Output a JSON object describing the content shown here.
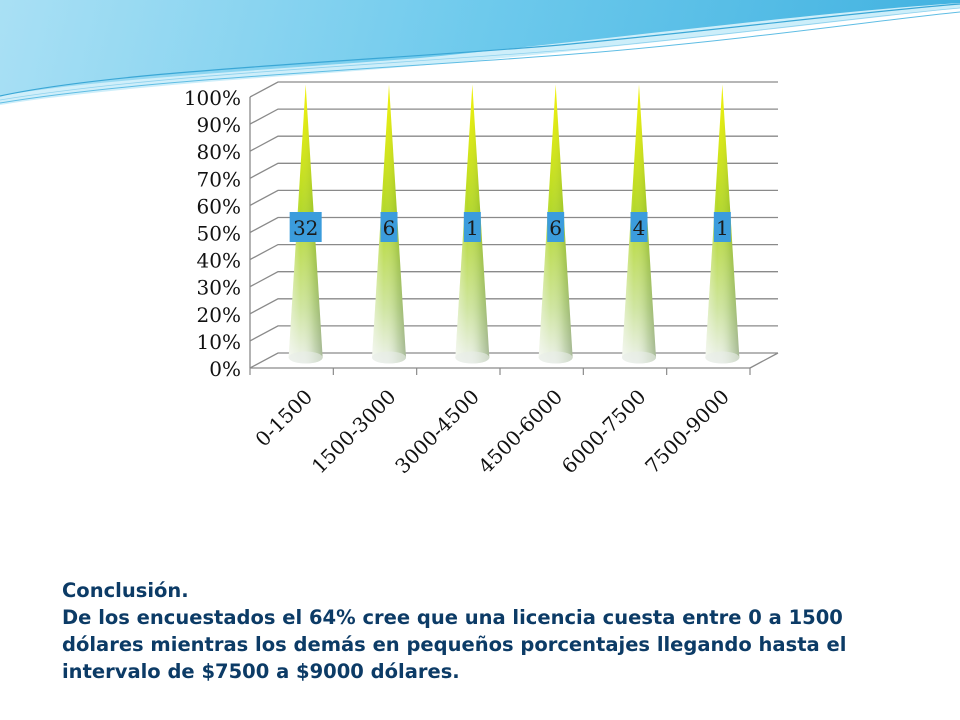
{
  "chart_data": {
    "type": "bar",
    "categories": [
      "0-1500",
      "1500-3000",
      "3000-4500",
      "4500-6000",
      "6000-7500",
      "7500-9000"
    ],
    "values": [
      100,
      100,
      100,
      100,
      100,
      100
    ],
    "data_labels": [
      "32",
      "6",
      "1",
      "6",
      "4",
      "1"
    ],
    "y_ticks": [
      "0%",
      "10%",
      "20%",
      "30%",
      "40%",
      "50%",
      "60%",
      "70%",
      "80%",
      "90%",
      "100%"
    ],
    "ylim": [
      0,
      100
    ],
    "grid": true,
    "colors": {
      "bar_top": "#f2f200",
      "bar_mid": "#a8d42a",
      "bar_bottom": "#e4eee8",
      "label_bg": "#3b9cdc",
      "grid": "#8a8a8a"
    }
  },
  "conclusion": {
    "title": "Conclusión.",
    "lines": [
      "De los encuestados el 64% cree que una licencia cuesta entre 0 a 1500",
      "dólares mientras los demás en pequeños porcentajes llegando hasta el",
      "intervalo de $7500 a $9000 dólares."
    ]
  }
}
